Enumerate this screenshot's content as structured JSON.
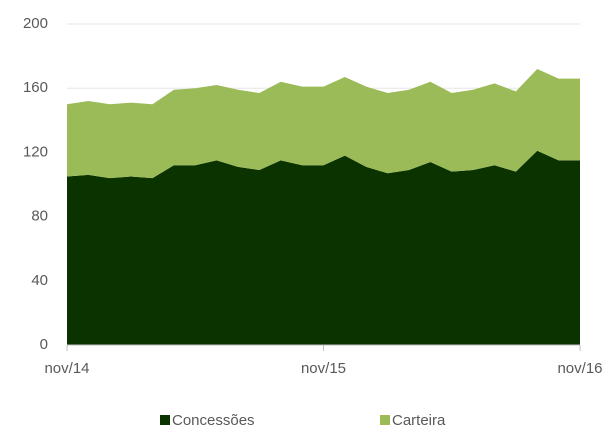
{
  "chart_data": {
    "type": "stacked_area",
    "categories": [
      "nov/14",
      null,
      null,
      null,
      null,
      null,
      null,
      null,
      null,
      null,
      null,
      null,
      "nov/15",
      null,
      null,
      null,
      null,
      null,
      null,
      null,
      null,
      null,
      null,
      null,
      "nov/16"
    ],
    "series": [
      {
        "name": "Concessões",
        "color": "#0b3300",
        "values": [
          105,
          106,
          104,
          105,
          104,
          112,
          112,
          115,
          111,
          109,
          115,
          112,
          112,
          118,
          111,
          107,
          109,
          114,
          108,
          109,
          112,
          108,
          121,
          115,
          115
        ]
      },
      {
        "name": "Carteira",
        "color": "#9bbb59",
        "values": [
          45,
          46,
          46,
          46,
          46,
          47,
          48,
          47,
          48,
          48,
          49,
          49,
          49,
          49,
          50,
          50,
          50,
          50,
          49,
          50,
          51,
          50,
          51,
          51,
          51
        ]
      }
    ],
    "ylim": [
      0,
      200
    ],
    "yticks": [
      0,
      40,
      80,
      120,
      160,
      200
    ],
    "grid": true,
    "legend": "bottom"
  }
}
